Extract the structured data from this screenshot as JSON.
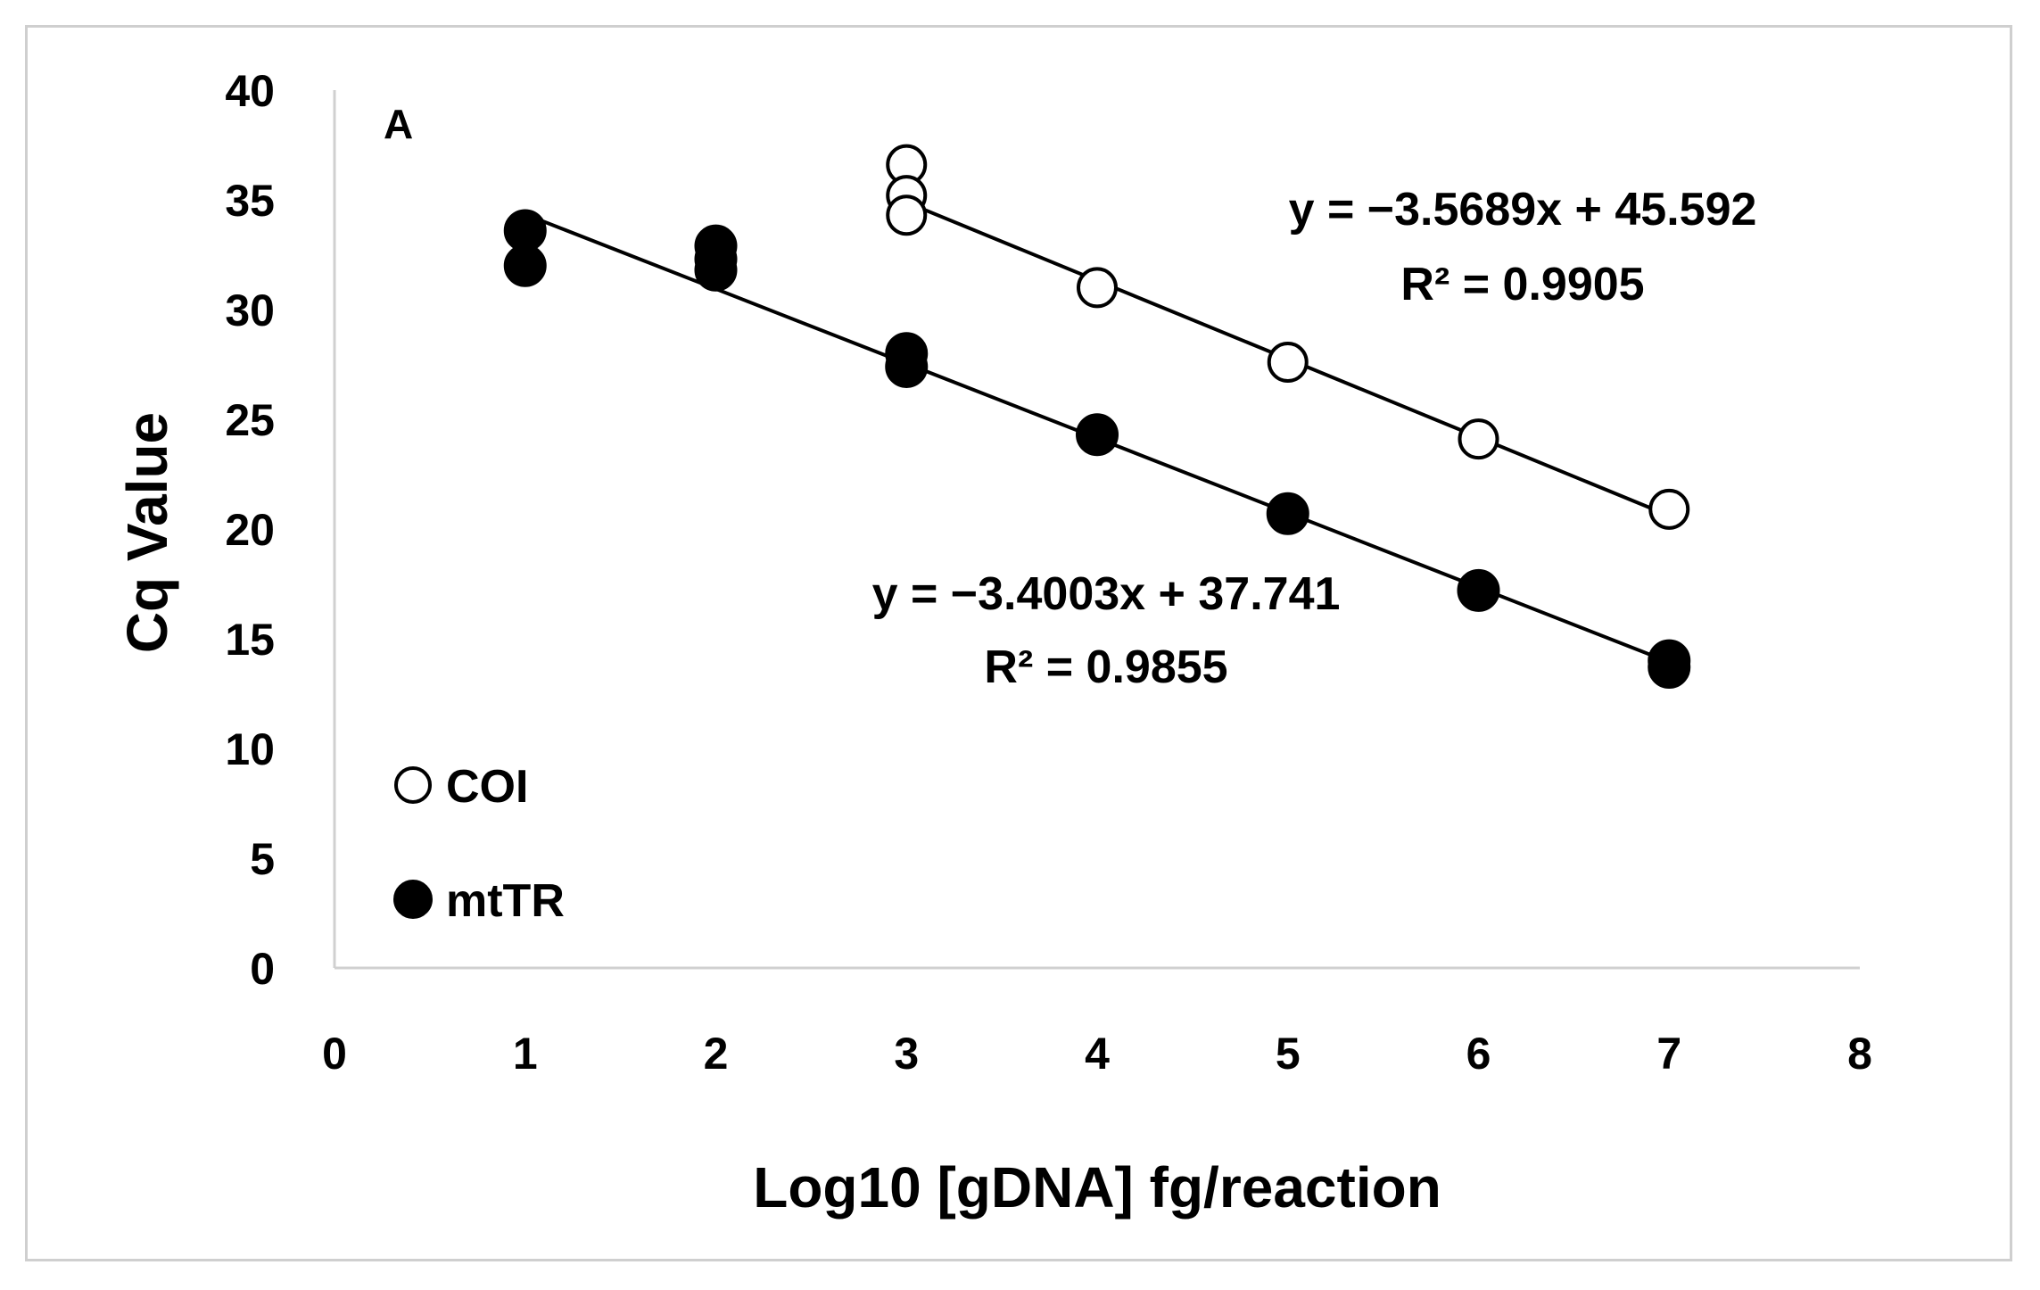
{
  "chart_data": {
    "type": "scatter",
    "panel_label": "A",
    "xlabel": "Log10 [gDNA] fg/reaction",
    "ylabel": "Cq Value",
    "xlim": [
      0,
      8
    ],
    "ylim": [
      0,
      40
    ],
    "x_ticks": [
      "0",
      "1",
      "2",
      "3",
      "4",
      "5",
      "6",
      "7",
      "8"
    ],
    "y_ticks": [
      "0",
      "5",
      "10",
      "15",
      "20",
      "25",
      "30",
      "35",
      "40"
    ],
    "grid": false,
    "legend_position": "bottom-left",
    "series": [
      {
        "name": "COI",
        "marker": "open-circle",
        "points": [
          {
            "x": 3,
            "y": 36.6
          },
          {
            "x": 3,
            "y": 35.2
          },
          {
            "x": 3,
            "y": 34.3
          },
          {
            "x": 4,
            "y": 31.0
          },
          {
            "x": 5,
            "y": 27.6
          },
          {
            "x": 6,
            "y": 24.1
          },
          {
            "x": 7,
            "y": 20.9
          }
        ],
        "trendline": {
          "slope": -3.5689,
          "intercept": 45.592,
          "x_range": [
            3,
            7
          ]
        },
        "equation": "y = −3.5689x + 45.592",
        "r2": "R² = 0.9905"
      },
      {
        "name": "mtTR",
        "marker": "filled-circle",
        "points": [
          {
            "x": 1,
            "y": 33.6
          },
          {
            "x": 1,
            "y": 32.0
          },
          {
            "x": 2,
            "y": 32.9
          },
          {
            "x": 2,
            "y": 32.3
          },
          {
            "x": 2,
            "y": 31.8
          },
          {
            "x": 3,
            "y": 28.0
          },
          {
            "x": 3,
            "y": 27.4
          },
          {
            "x": 4,
            "y": 24.3
          },
          {
            "x": 5,
            "y": 20.7
          },
          {
            "x": 6,
            "y": 17.2
          },
          {
            "x": 7,
            "y": 14.0
          },
          {
            "x": 7,
            "y": 13.7
          }
        ],
        "trendline": {
          "slope": -3.4003,
          "intercept": 37.741,
          "x_range": [
            1,
            7
          ]
        },
        "equation": "y = −3.4003x + 37.741",
        "r2": "R² = 0.9855"
      }
    ]
  }
}
